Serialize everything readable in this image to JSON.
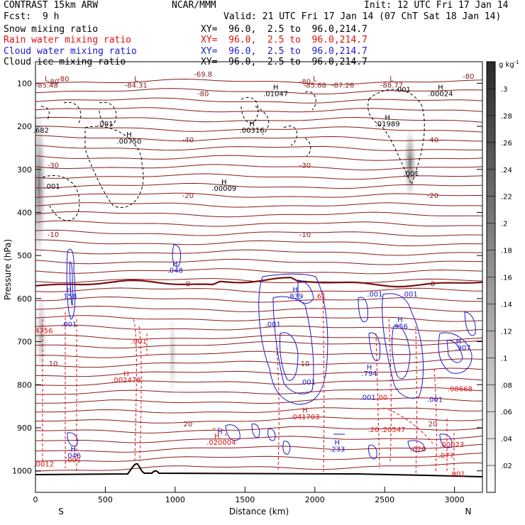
{
  "header": {
    "model": "CONTRAST 15km ARW",
    "org": "NCAR/MMM",
    "init": "Init: 12 UTC Fri 17 Jan 14",
    "fcst_label": "Fcst:",
    "fcst_value": "9 h",
    "valid": "Valid: 21 UTC Fri 17 Jan 14 (07 ChT Sat 18 Jan 14)",
    "fields": [
      {
        "name": "Snow mixing ratio",
        "xy": "XY=  96.0,  2.5 to  96.0,214.7",
        "color": "#000000"
      },
      {
        "name": "Rain water mixing ratio",
        "xy": "XY=  96.0,  2.5 to  96.0,214.7",
        "color": "#e01010"
      },
      {
        "name": "Cloud water mixing ratio",
        "xy": "XY=  96.0,  2.5 to  96.0,214.7",
        "color": "#1a1ad0"
      },
      {
        "name": "Cloud ice mixing ratio",
        "xy": "XY=  96.0,  2.5 to  96.0,214.7",
        "color": "#000000"
      }
    ]
  },
  "chart_data": {
    "type": "contour cross-section",
    "xlabel": "Distance (km)",
    "ylabel": "Pressure (hPa)",
    "xlim": [
      0,
      3200
    ],
    "ylim": [
      1050,
      50
    ],
    "x_ticks": [
      0,
      500,
      1000,
      1500,
      2000,
      2500,
      3000
    ],
    "y_ticks": [
      100,
      200,
      300,
      400,
      500,
      600,
      700,
      800,
      900,
      1000
    ],
    "endpoints": {
      "left": "S",
      "right": "N"
    },
    "colorbar": {
      "unit": "g kg",
      "unit_exp": "-1",
      "ticks": [
        ".02",
        ".04",
        ".06",
        ".08",
        ".1",
        ".12",
        ".14",
        ".16",
        ".18",
        ".2",
        ".22",
        ".24",
        ".26",
        ".28",
        ".3"
      ]
    },
    "temperature_contours": [
      {
        "label": "-80",
        "p": 95
      },
      {
        "label": "-40",
        "p": 230
      },
      {
        "label": "-30",
        "p": 290
      },
      {
        "label": "-20",
        "p": 360
      },
      {
        "label": "-10",
        "p": 450
      },
      {
        "label": "0",
        "p": 565
      },
      {
        "label": "10",
        "p": 750
      },
      {
        "label": "20",
        "p": 890
      }
    ],
    "annotations": [
      {
        "text": "L",
        "x": 80,
        "p": 90,
        "color": "#8b1a1a"
      },
      {
        "text": "-85.48",
        "x": 80,
        "p": 105,
        "color": "#8b1a1a"
      },
      {
        "text": "-80",
        "x": 200,
        "p": 90,
        "color": "#8b1a1a"
      },
      {
        "text": "L",
        "x": 720,
        "p": 90,
        "color": "#8b1a1a"
      },
      {
        "text": "-84.31",
        "x": 720,
        "p": 105,
        "color": "#8b1a1a"
      },
      {
        "text": "-69.8",
        "x": 1200,
        "p": 80,
        "color": "#8b1a1a"
      },
      {
        "text": "-80",
        "x": 1200,
        "p": 125,
        "color": "#8b1a1a"
      },
      {
        "text": "L",
        "x": 2000,
        "p": 90,
        "color": "#8b1a1a"
      },
      {
        "text": "-85.88",
        "x": 2000,
        "p": 105,
        "color": "#8b1a1a"
      },
      {
        "text": "-87.26",
        "x": 2200,
        "p": 105,
        "color": "#8b1a1a"
      },
      {
        "text": "L",
        "x": 2550,
        "p": 90,
        "color": "#8b1a1a"
      },
      {
        "text": "-88.77",
        "x": 2550,
        "p": 105,
        "color": "#8b1a1a"
      },
      {
        "text": "-80",
        "x": 3100,
        "p": 85,
        "color": "#8b1a1a"
      },
      {
        "text": "H",
        "x": 1720,
        "p": 110,
        "color": "#000000"
      },
      {
        "text": ".01047",
        "x": 1720,
        "p": 125,
        "color": "#000000"
      },
      {
        "text": ".001",
        "x": 2630,
        "p": 115,
        "color": "#000000"
      },
      {
        "text": "H",
        "x": 2900,
        "p": 110,
        "color": "#000000"
      },
      {
        "text": ".00024",
        "x": 2900,
        "p": 125,
        "color": "#000000"
      },
      {
        "text": "H",
        "x": 2520,
        "p": 180,
        "color": "#000000"
      },
      {
        "text": ".01989",
        "x": 2520,
        "p": 195,
        "color": "#000000"
      },
      {
        "text": ".001",
        "x": 500,
        "p": 195,
        "color": "#000000"
      },
      {
        "text": "H",
        "x": 1550,
        "p": 195,
        "color": "#000000"
      },
      {
        "text": ".00316",
        "x": 1550,
        "p": 210,
        "color": "#000000"
      },
      {
        "text": "H",
        "x": 670,
        "p": 220,
        "color": "#000000"
      },
      {
        "text": ".00750",
        "x": 670,
        "p": 235,
        "color": "#000000"
      },
      {
        "text": ".682",
        "x": 40,
        "p": 210,
        "color": "#000000"
      },
      {
        "text": ".001",
        "x": 120,
        "p": 340,
        "color": "#000000"
      },
      {
        "text": "H",
        "x": 1350,
        "p": 330,
        "color": "#000000"
      },
      {
        "text": ".00009",
        "x": 1350,
        "p": 345,
        "color": "#000000"
      },
      {
        "text": ".001",
        "x": 2690,
        "p": 310,
        "color": "#000000"
      },
      {
        "text": "H",
        "x": 1000,
        "p": 520,
        "color": "#1a1ad0"
      },
      {
        "text": ".048",
        "x": 1000,
        "p": 535,
        "color": "#1a1ad0"
      },
      {
        "text": "H",
        "x": 240,
        "p": 580,
        "color": "#1a1ad0"
      },
      {
        "text": ".158",
        "x": 240,
        "p": 595,
        "color": "#1a1ad0"
      },
      {
        "text": ".001",
        "x": 240,
        "p": 660,
        "color": "#1a1ad0"
      },
      {
        "text": "H",
        "x": 1860,
        "p": 580,
        "color": "#1a1ad0"
      },
      {
        "text": ".839",
        "x": 1860,
        "p": 595,
        "color": "#1a1ad0"
      },
      {
        "text": ".61",
        "x": 2040,
        "p": 595,
        "color": "#e01010"
      },
      {
        "text": ".001",
        "x": 2430,
        "p": 590,
        "color": "#1a1ad0"
      },
      {
        "text": ".001",
        "x": 2680,
        "p": 590,
        "color": "#1a1ad0"
      },
      {
        "text": ".001",
        "x": 1700,
        "p": 660,
        "color": "#1a1ad0"
      },
      {
        "text": "H",
        "x": 2610,
        "p": 650,
        "color": "#1a1ad0"
      },
      {
        "text": ".956",
        "x": 2610,
        "p": 665,
        "color": "#1a1ad0"
      },
      {
        "text": "4756",
        "x": 60,
        "p": 675,
        "color": "#e01010"
      },
      {
        "text": ".001",
        "x": 740,
        "p": 700,
        "color": "#e01010"
      },
      {
        "text": "H",
        "x": 3030,
        "p": 700,
        "color": "#1a1ad0"
      },
      {
        "text": ".907",
        "x": 3060,
        "p": 715,
        "color": "#1a1ad0"
      },
      {
        "text": "H",
        "x": 650,
        "p": 775,
        "color": "#e01010"
      },
      {
        "text": ".002478",
        "x": 650,
        "p": 790,
        "color": "#e01010"
      },
      {
        "text": "H",
        "x": 2390,
        "p": 760,
        "color": "#1a1ad0"
      },
      {
        "text": ".794",
        "x": 2390,
        "p": 775,
        "color": "#1a1ad0"
      },
      {
        "text": ".001",
        "x": 1950,
        "p": 795,
        "color": "#1a1ad0"
      },
      {
        "text": ".001",
        "x": 2380,
        "p": 830,
        "color": "#1a1ad0"
      },
      {
        "text": ".00",
        "x": 2480,
        "p": 830,
        "color": "#e01010"
      },
      {
        "text": ".001",
        "x": 2860,
        "p": 835,
        "color": "#1a1ad0"
      },
      {
        "text": ".08668",
        "x": 3040,
        "p": 810,
        "color": "#e01010"
      },
      {
        "text": "H",
        "x": 1930,
        "p": 860,
        "color": "#e01010"
      },
      {
        "text": ".041703",
        "x": 1930,
        "p": 875,
        "color": "#e01010"
      },
      {
        "text": "H",
        "x": 1320,
        "p": 910,
        "color": "#1a1ad0"
      },
      {
        "text": "H",
        "x": 1300,
        "p": 920,
        "color": "#e01010"
      },
      {
        "text": ".020004",
        "x": 1330,
        "p": 935,
        "color": "#e01010"
      },
      {
        "text": ".20",
        "x": 2420,
        "p": 905,
        "color": "#e01010"
      },
      {
        "text": ".20547",
        "x": 2560,
        "p": 905,
        "color": "#e01010"
      },
      {
        "text": ".00023",
        "x": 2980,
        "p": 940,
        "color": "#e01010"
      },
      {
        "text": ".020",
        "x": 2740,
        "p": 950,
        "color": "#e01010"
      },
      {
        "text": ".077",
        "x": 2940,
        "p": 965,
        "color": "#e01010"
      },
      {
        "text": "H",
        "x": 2160,
        "p": 935,
        "color": "#1a1ad0"
      },
      {
        "text": ".233",
        "x": 2160,
        "p": 950,
        "color": "#1a1ad0"
      },
      {
        "text": "H",
        "x": 270,
        "p": 950,
        "color": "#1a1ad0"
      },
      {
        "text": ".046",
        "x": 270,
        "p": 965,
        "color": "#1a1ad0"
      },
      {
        "text": ".001",
        "x": 270,
        "p": 975,
        "color": "#e01010"
      },
      {
        "text": ".0012",
        "x": 60,
        "p": 985,
        "color": "#e01010"
      },
      {
        "text": ".001",
        "x": 3020,
        "p": 1008,
        "color": "#e01010"
      }
    ]
  }
}
